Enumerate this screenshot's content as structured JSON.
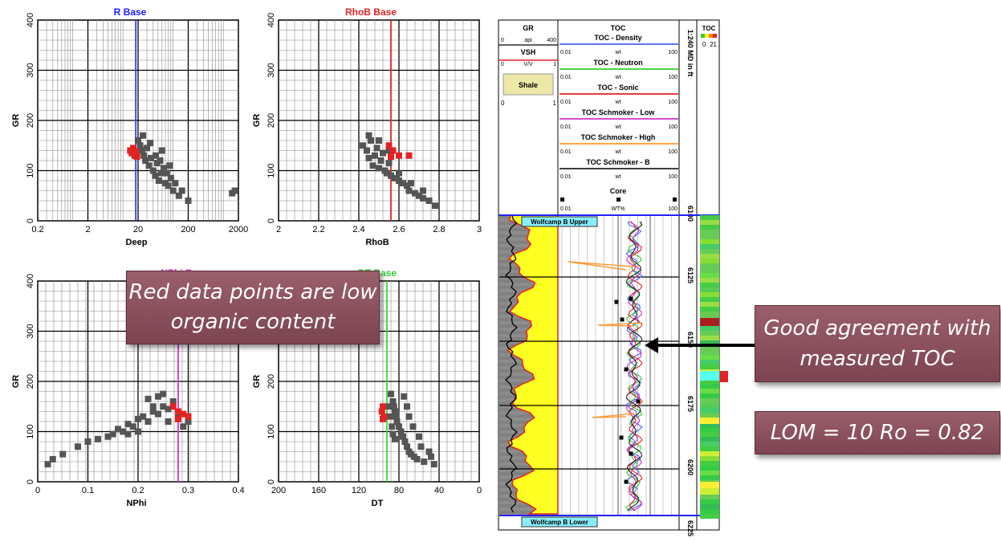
{
  "chart_data": [
    {
      "type": "scatter",
      "title": "R Base",
      "title_color": "#1a1aff",
      "xlabel": "Deep",
      "ylabel": "GR",
      "x_scale": "log",
      "xlim": [
        0.2,
        2000
      ],
      "ylim": [
        0,
        400
      ],
      "xticks": [
        "0.2",
        "2",
        "20",
        "200",
        "2000"
      ],
      "yticks": [
        "0",
        "100",
        "200",
        "300",
        "400"
      ],
      "cutoff_line": {
        "x": 18,
        "color": "#3a3aff"
      },
      "series": [
        {
          "color": "#555555",
          "points": [
            [
              20,
              160
            ],
            [
              22,
              150
            ],
            [
              24,
              140
            ],
            [
              26,
              130
            ],
            [
              28,
              120
            ],
            [
              30,
              145
            ],
            [
              33,
              110
            ],
            [
              36,
              125
            ],
            [
              40,
              100
            ],
            [
              44,
              90
            ],
            [
              48,
              115
            ],
            [
              52,
              80
            ],
            [
              58,
              95
            ],
            [
              65,
              105
            ],
            [
              70,
              75
            ],
            [
              80,
              70
            ],
            [
              90,
              85
            ],
            [
              100,
              60
            ],
            [
              110,
              75
            ],
            [
              130,
              50
            ],
            [
              150,
              60
            ],
            [
              200,
              40
            ],
            [
              25,
              170
            ],
            [
              35,
              155
            ],
            [
              45,
              130
            ],
            [
              55,
              120
            ],
            [
              60,
              140
            ],
            [
              75,
              95
            ],
            [
              85,
              110
            ],
            [
              1500,
              55
            ],
            [
              1700,
              60
            ]
          ]
        },
        {
          "color": "#e32222",
          "points": [
            [
              14,
              140
            ],
            [
              15,
              135
            ],
            [
              16,
              145
            ],
            [
              17,
              130
            ],
            [
              18,
              138
            ],
            [
              19,
              128
            ]
          ]
        }
      ]
    },
    {
      "type": "scatter",
      "title": "RhoB Base",
      "title_color": "#e32222",
      "xlabel": "RhoB",
      "ylabel": "GR",
      "xlim": [
        2,
        3
      ],
      "ylim": [
        0,
        400
      ],
      "xticks": [
        "2",
        "2.2",
        "2.4",
        "2.6",
        "2.8",
        "3"
      ],
      "yticks": [
        "0",
        "100",
        "200",
        "300",
        "400"
      ],
      "cutoff_line": {
        "x": 2.56,
        "color": "#e32222"
      },
      "series": [
        {
          "color": "#555555",
          "points": [
            [
              2.42,
              150
            ],
            [
              2.44,
              140
            ],
            [
              2.45,
              125
            ],
            [
              2.46,
              160
            ],
            [
              2.47,
              110
            ],
            [
              2.48,
              130
            ],
            [
              2.49,
              145
            ],
            [
              2.5,
              105
            ],
            [
              2.51,
              120
            ],
            [
              2.52,
              135
            ],
            [
              2.53,
              100
            ],
            [
              2.54,
              95
            ],
            [
              2.55,
              115
            ],
            [
              2.56,
              90
            ],
            [
              2.58,
              85
            ],
            [
              2.6,
              80
            ],
            [
              2.62,
              75
            ],
            [
              2.64,
              70
            ],
            [
              2.65,
              60
            ],
            [
              2.68,
              55
            ],
            [
              2.7,
              50
            ],
            [
              2.72,
              45
            ],
            [
              2.75,
              40
            ],
            [
              2.78,
              30
            ],
            [
              2.45,
              170
            ],
            [
              2.5,
              160
            ],
            [
              2.55,
              140
            ],
            [
              2.6,
              95
            ],
            [
              2.66,
              75
            ],
            [
              2.72,
              60
            ]
          ]
        },
        {
          "color": "#e32222",
          "points": [
            [
              2.55,
              150
            ],
            [
              2.57,
              140
            ],
            [
              2.6,
              130
            ],
            [
              2.65,
              130
            ],
            [
              2.56,
              128
            ]
          ]
        }
      ]
    },
    {
      "type": "scatter",
      "title": "",
      "xlabel": "NPhi",
      "ylabel": "GR",
      "xlim": [
        0,
        0.4
      ],
      "ylim": [
        0,
        400
      ],
      "xticks": [
        "0",
        "0.1",
        "0.2",
        "0.3",
        "0.4"
      ],
      "yticks": [
        "0",
        "100",
        "200",
        "300",
        "400"
      ],
      "cutoff_line": {
        "x": 0.28,
        "color": "#cc33cc"
      },
      "series": [
        {
          "color": "#555555",
          "points": [
            [
              0.02,
              35
            ],
            [
              0.03,
              45
            ],
            [
              0.05,
              55
            ],
            [
              0.08,
              70
            ],
            [
              0.1,
              80
            ],
            [
              0.12,
              85
            ],
            [
              0.14,
              90
            ],
            [
              0.15,
              95
            ],
            [
              0.16,
              105
            ],
            [
              0.17,
              100
            ],
            [
              0.18,
              115
            ],
            [
              0.19,
              110
            ],
            [
              0.2,
              125
            ],
            [
              0.21,
              130
            ],
            [
              0.22,
              120
            ],
            [
              0.23,
              140
            ],
            [
              0.24,
              135
            ],
            [
              0.25,
              150
            ],
            [
              0.26,
              145
            ],
            [
              0.27,
              160
            ],
            [
              0.22,
              165
            ],
            [
              0.24,
              170
            ],
            [
              0.26,
              120
            ],
            [
              0.28,
              130
            ],
            [
              0.29,
              110
            ],
            [
              0.3,
              120
            ],
            [
              0.2,
              100
            ],
            [
              0.18,
              95
            ],
            [
              0.25,
              175
            ],
            [
              0.23,
              150
            ]
          ]
        },
        {
          "color": "#e32222",
          "points": [
            [
              0.27,
              150
            ],
            [
              0.28,
              140
            ],
            [
              0.29,
              135
            ],
            [
              0.3,
              130
            ],
            [
              0.28,
              125
            ]
          ]
        }
      ]
    },
    {
      "type": "scatter",
      "title": "",
      "title_suffix": "Base",
      "xlabel": "DT",
      "ylabel": "GR",
      "xlim": [
        200,
        0
      ],
      "ylim": [
        0,
        400
      ],
      "xticks": [
        "200",
        "160",
        "120",
        "80",
        "40",
        "0"
      ],
      "yticks": [
        "0",
        "100",
        "200",
        "300",
        "400"
      ],
      "cutoff_line": {
        "x": 92,
        "color": "#33dd33"
      },
      "series": [
        {
          "color": "#555555",
          "points": [
            [
              88,
              175
            ],
            [
              86,
              160
            ],
            [
              85,
              150
            ],
            [
              84,
              140
            ],
            [
              83,
              130
            ],
            [
              82,
              120
            ],
            [
              80,
              110
            ],
            [
              78,
              100
            ],
            [
              76,
              90
            ],
            [
              74,
              80
            ],
            [
              72,
              70
            ],
            [
              70,
              60
            ],
            [
              68,
              55
            ],
            [
              65,
              50
            ],
            [
              62,
              45
            ],
            [
              55,
              40
            ],
            [
              45,
              35
            ],
            [
              90,
              150
            ],
            [
              89,
              130
            ],
            [
              87,
              110
            ],
            [
              86,
              95
            ],
            [
              84,
              85
            ],
            [
              75,
              170
            ],
            [
              72,
              150
            ],
            [
              70,
              130
            ],
            [
              66,
              110
            ],
            [
              60,
              90
            ],
            [
              58,
              70
            ],
            [
              50,
              60
            ],
            [
              48,
              50
            ]
          ]
        },
        {
          "color": "#e32222",
          "points": [
            [
              96,
              150
            ],
            [
              97,
              140
            ],
            [
              95,
              130
            ],
            [
              96,
              125
            ]
          ]
        }
      ]
    }
  ],
  "log_panel": {
    "gr_header": {
      "title": "GR",
      "min": "0",
      "unit": "api",
      "max": "400"
    },
    "vsh_header": {
      "title": "VSH",
      "min": "0",
      "unit": "V/V",
      "max": "1"
    },
    "shale_label": "Shale",
    "shale_min": "0",
    "shale_max": "1",
    "toc_title": "TOC",
    "toc_curves": [
      {
        "name": "TOC - Density",
        "min": "0.01",
        "unit": "wt",
        "max": "100",
        "color": "#4466ff"
      },
      {
        "name": "TOC - Neutron",
        "min": "0.01",
        "unit": "wt",
        "max": "100",
        "color": "#33cc33"
      },
      {
        "name": "TOC - Sonic",
        "min": "0.01",
        "unit": "wt",
        "max": "100",
        "color": "#e32222"
      },
      {
        "name": "TOC Schmoker - Low",
        "min": "0.01",
        "unit": "wt",
        "max": "100",
        "color": "#cc33cc"
      },
      {
        "name": "TOC Schmoker - High",
        "min": "0.01",
        "unit": "wt",
        "max": "100",
        "color": "#ff9933"
      },
      {
        "name": "TOC Schmoker - B",
        "min": "0.01",
        "unit": "wt",
        "max": "100",
        "color": "#222222"
      }
    ],
    "core": {
      "name": "Core",
      "min": "0.01",
      "unit": "WT%",
      "max": "100"
    },
    "depth_header": "1:240 MD in ft",
    "depth_labels": [
      "6100",
      "6125",
      "6150",
      "6175",
      "6200",
      "6225"
    ],
    "toc_color_header": {
      "title": "TOC",
      "min": "0",
      "max": "21"
    },
    "formation_top": "Wolfcamp B Upper",
    "formation_bottom": "Wolfcamp B Lower"
  },
  "callouts": {
    "red_points": "Red data points are low organic content",
    "agreement": "Good agreement with measured TOC",
    "maturity": "LOM = 10  Ro = 0.82"
  },
  "partial_titles": {
    "nphi": "NPhi Base",
    "dt": "DT Base"
  }
}
